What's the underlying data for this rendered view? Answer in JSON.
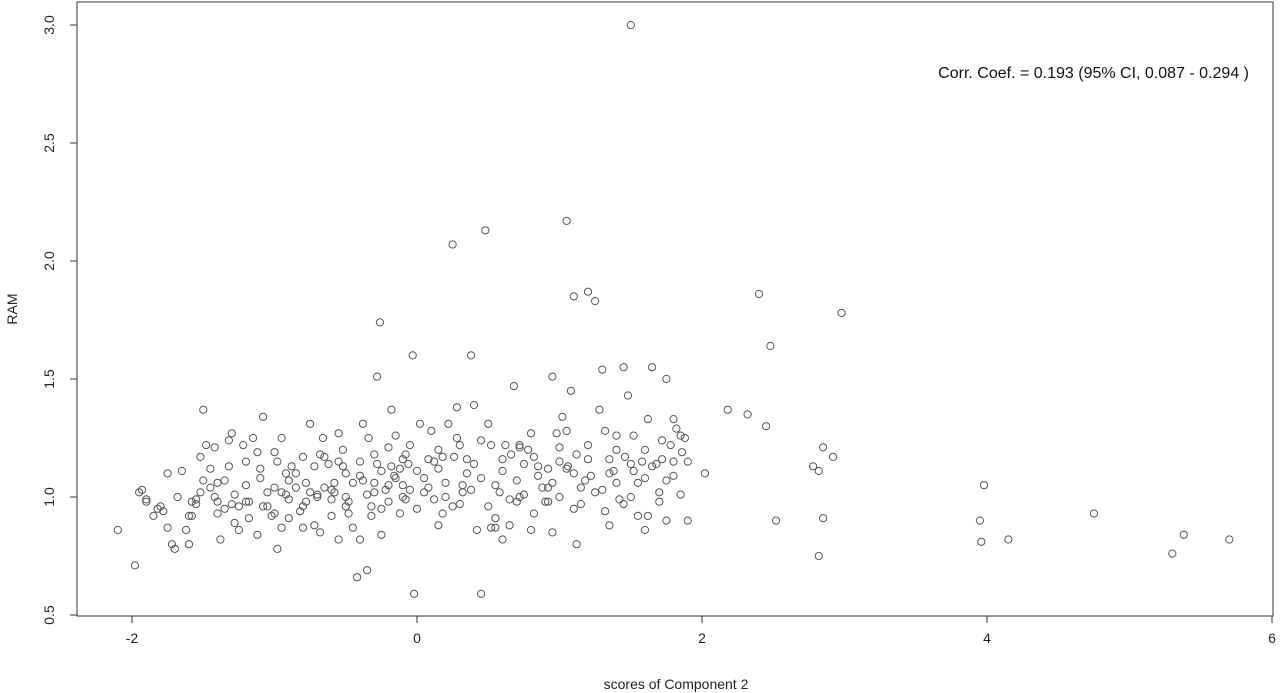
{
  "chart_data": {
    "type": "scatter",
    "title": "",
    "xlabel": "scores of Component 2",
    "ylabel": "RAM",
    "xlim": [
      -2.4,
      6
    ],
    "ylim": [
      0.5,
      3.05
    ],
    "xticks": [
      -2,
      0,
      2,
      4,
      6
    ],
    "xtick_labels": [
      "-2",
      "0",
      "2",
      "4",
      "6"
    ],
    "yticks": [
      0.5,
      1.0,
      1.5,
      2.0,
      2.5,
      3.0
    ],
    "ytick_labels": [
      "0.5",
      "1.0",
      "1.5",
      "2.0",
      "2.5",
      "3.0"
    ],
    "annotation": "Corr. Coef. = 0.193  (95% CI,  0.087 - 0.294 )",
    "grid": false,
    "marker": "open-circle",
    "points": [
      [
        -2.1,
        0.86
      ],
      [
        -1.98,
        0.71
      ],
      [
        -1.95,
        1.02
      ],
      [
        -1.93,
        1.03
      ],
      [
        -1.9,
        0.98
      ],
      [
        -1.85,
        0.92
      ],
      [
        -1.82,
        0.95
      ],
      [
        -1.8,
        0.96
      ],
      [
        -1.75,
        0.87
      ],
      [
        -1.72,
        0.8
      ],
      [
        -1.7,
        0.78
      ],
      [
        -1.68,
        1.0
      ],
      [
        -1.62,
        0.86
      ],
      [
        -1.6,
        0.8
      ],
      [
        -1.58,
        0.92
      ],
      [
        -1.58,
        0.98
      ],
      [
        -1.55,
        0.97
      ],
      [
        -1.52,
        1.17
      ],
      [
        -1.5,
        1.37
      ],
      [
        -1.48,
        1.22
      ],
      [
        -1.45,
        1.04
      ],
      [
        -1.42,
        1.0
      ],
      [
        -1.4,
        0.93
      ],
      [
        -1.38,
        0.82
      ],
      [
        -1.35,
        0.95
      ],
      [
        -1.32,
        1.24
      ],
      [
        -1.3,
        1.27
      ],
      [
        -1.28,
        0.89
      ],
      [
        -1.25,
        0.96
      ],
      [
        -1.22,
        1.22
      ],
      [
        -1.2,
        0.98
      ],
      [
        -1.18,
        0.98
      ],
      [
        -1.15,
        1.25
      ],
      [
        -1.12,
        0.84
      ],
      [
        -1.1,
        1.12
      ],
      [
        -1.08,
        1.34
      ],
      [
        -1.05,
        1.02
      ],
      [
        -1.02,
        0.92
      ],
      [
        -1.0,
        1.04
      ],
      [
        -0.98,
        0.78
      ],
      [
        -0.95,
        1.25
      ],
      [
        -0.92,
        1.1
      ],
      [
        -0.9,
        0.99
      ],
      [
        -0.88,
        1.13
      ],
      [
        -0.85,
        1.04
      ],
      [
        -0.82,
        0.94
      ],
      [
        -0.8,
        0.96
      ],
      [
        -0.78,
        1.06
      ],
      [
        -0.75,
        1.31
      ],
      [
        -0.72,
        0.88
      ],
      [
        -0.7,
        1.01
      ],
      [
        -0.68,
        0.85
      ],
      [
        -0.65,
        1.17
      ],
      [
        -0.62,
        1.14
      ],
      [
        -0.6,
        0.92
      ],
      [
        -0.58,
        1.02
      ],
      [
        -0.55,
        1.27
      ],
      [
        -0.52,
        1.2
      ],
      [
        -0.5,
        1.1
      ],
      [
        -0.48,
        0.98
      ],
      [
        -0.45,
        0.87
      ],
      [
        -0.42,
        0.66
      ],
      [
        -0.4,
        0.82
      ],
      [
        -0.38,
        1.31
      ],
      [
        -0.35,
        0.69
      ],
      [
        -0.32,
        0.92
      ],
      [
        -0.3,
        1.06
      ],
      [
        -0.28,
        1.51
      ],
      [
        -0.26,
        1.74
      ],
      [
        -0.25,
        0.95
      ],
      [
        -0.22,
        1.03
      ],
      [
        -0.2,
        1.21
      ],
      [
        -0.18,
        1.37
      ],
      [
        -0.16,
        1.09
      ],
      [
        -0.15,
        1.26
      ],
      [
        -0.12,
        0.93
      ],
      [
        -0.1,
        1.05
      ],
      [
        -0.08,
        0.99
      ],
      [
        -0.06,
        1.14
      ],
      [
        -0.05,
        1.22
      ],
      [
        -0.03,
        1.6
      ],
      [
        -0.02,
        0.59
      ],
      [
        0.0,
        1.11
      ],
      [
        0.02,
        1.31
      ],
      [
        0.05,
        1.02
      ],
      [
        0.08,
        1.16
      ],
      [
        0.1,
        1.28
      ],
      [
        0.12,
        0.99
      ],
      [
        0.15,
        1.2
      ],
      [
        0.18,
        1.17
      ],
      [
        0.2,
        1.0
      ],
      [
        0.22,
        1.31
      ],
      [
        0.25,
        2.07
      ],
      [
        0.28,
        1.38
      ],
      [
        0.3,
        0.97
      ],
      [
        0.32,
        1.05
      ],
      [
        0.35,
        1.16
      ],
      [
        0.38,
        1.6
      ],
      [
        0.4,
        1.39
      ],
      [
        0.42,
        0.86
      ],
      [
        0.45,
        0.59
      ],
      [
        0.48,
        2.13
      ],
      [
        0.5,
        1.31
      ],
      [
        0.52,
        0.87
      ],
      [
        0.55,
        0.91
      ],
      [
        0.58,
        1.02
      ],
      [
        0.6,
        0.82
      ],
      [
        0.62,
        1.22
      ],
      [
        0.65,
        0.88
      ],
      [
        0.68,
        1.47
      ],
      [
        0.7,
        1.07
      ],
      [
        0.72,
        1.22
      ],
      [
        0.75,
        1.14
      ],
      [
        0.78,
        1.2
      ],
      [
        0.8,
        0.86
      ],
      [
        0.82,
        1.17
      ],
      [
        0.85,
        1.09
      ],
      [
        0.88,
        1.04
      ],
      [
        0.9,
        0.98
      ],
      [
        0.92,
        0.98
      ],
      [
        0.95,
        1.51
      ],
      [
        0.98,
        1.27
      ],
      [
        1.0,
        1.15
      ],
      [
        1.02,
        1.34
      ],
      [
        1.05,
        2.17
      ],
      [
        1.08,
        1.45
      ],
      [
        1.1,
        1.85
      ],
      [
        1.12,
        0.8
      ],
      [
        1.15,
        0.97
      ],
      [
        1.18,
        1.07
      ],
      [
        1.2,
        1.87
      ],
      [
        1.22,
        1.09
      ],
      [
        1.25,
        1.83
      ],
      [
        1.28,
        1.37
      ],
      [
        1.3,
        1.54
      ],
      [
        1.32,
        0.94
      ],
      [
        1.35,
        1.16
      ],
      [
        1.38,
        1.11
      ],
      [
        1.4,
        1.26
      ],
      [
        1.42,
        0.99
      ],
      [
        1.45,
        1.55
      ],
      [
        1.48,
        1.43
      ],
      [
        1.5,
        3.0
      ],
      [
        1.52,
        1.26
      ],
      [
        1.55,
        0.92
      ],
      [
        1.58,
        1.15
      ],
      [
        1.6,
        0.86
      ],
      [
        1.62,
        0.92
      ],
      [
        1.65,
        1.55
      ],
      [
        1.68,
        1.14
      ],
      [
        1.7,
        1.02
      ],
      [
        1.72,
        1.16
      ],
      [
        1.75,
        1.5
      ],
      [
        1.78,
        1.22
      ],
      [
        1.8,
        1.33
      ],
      [
        1.82,
        1.29
      ],
      [
        1.85,
        1.26
      ],
      [
        1.88,
        1.25
      ],
      [
        1.9,
        0.9
      ],
      [
        2.02,
        1.1
      ],
      [
        2.18,
        1.37
      ],
      [
        2.32,
        1.35
      ],
      [
        2.4,
        1.86
      ],
      [
        2.45,
        1.3
      ],
      [
        2.48,
        1.64
      ],
      [
        2.52,
        0.9
      ],
      [
        2.78,
        1.13
      ],
      [
        2.82,
        1.11
      ],
      [
        2.82,
        0.75
      ],
      [
        2.85,
        1.21
      ],
      [
        2.85,
        0.91
      ],
      [
        2.92,
        1.17
      ],
      [
        2.98,
        1.78
      ],
      [
        3.95,
        0.9
      ],
      [
        3.96,
        0.81
      ],
      [
        3.98,
        1.05
      ],
      [
        4.15,
        0.82
      ],
      [
        4.75,
        0.93
      ],
      [
        5.3,
        0.76
      ],
      [
        5.38,
        0.84
      ],
      [
        5.7,
        0.82
      ],
      [
        -1.6,
        0.92
      ],
      [
        -1.5,
        1.07
      ],
      [
        -1.45,
        1.12
      ],
      [
        -1.4,
        0.98
      ],
      [
        -1.35,
        1.07
      ],
      [
        -1.3,
        0.97
      ],
      [
        -1.2,
        1.05
      ],
      [
        -1.1,
        1.08
      ],
      [
        -1.05,
        0.96
      ],
      [
        -0.95,
        1.02
      ],
      [
        -0.85,
        1.1
      ],
      [
        -0.8,
        0.87
      ],
      [
        -0.75,
        1.02
      ],
      [
        -0.7,
        1.0
      ],
      [
        -0.65,
        1.04
      ],
      [
        -0.6,
        1.03
      ],
      [
        -0.55,
        1.15
      ],
      [
        -0.5,
        0.96
      ],
      [
        -0.45,
        1.06
      ],
      [
        -0.4,
        1.09
      ],
      [
        -0.35,
        1.01
      ],
      [
        -0.3,
        1.02
      ],
      [
        -0.25,
        1.11
      ],
      [
        -0.2,
        1.05
      ],
      [
        -0.15,
        1.08
      ],
      [
        -0.1,
        1.0
      ],
      [
        -0.05,
        1.03
      ],
      [
        0.05,
        1.08
      ],
      [
        0.15,
        1.12
      ],
      [
        0.25,
        0.96
      ],
      [
        0.35,
        1.1
      ],
      [
        0.45,
        1.08
      ],
      [
        0.55,
        1.05
      ],
      [
        0.65,
        0.99
      ],
      [
        0.75,
        1.01
      ],
      [
        0.85,
        1.13
      ],
      [
        0.95,
        1.06
      ],
      [
        1.05,
        1.12
      ],
      [
        1.15,
        1.04
      ],
      [
        1.25,
        1.02
      ],
      [
        1.35,
        1.1
      ],
      [
        1.45,
        0.97
      ],
      [
        1.55,
        1.06
      ],
      [
        1.65,
        1.13
      ],
      [
        1.75,
        1.07
      ],
      [
        1.85,
        1.01
      ],
      [
        -1.9,
        0.99
      ],
      [
        -1.78,
        0.94
      ],
      [
        -1.65,
        1.11
      ],
      [
        -1.55,
        0.99
      ],
      [
        -1.42,
        1.21
      ],
      [
        -1.28,
        1.01
      ],
      [
        -1.18,
        0.91
      ],
      [
        -1.08,
        0.96
      ],
      [
        -0.98,
        1.15
      ],
      [
        -0.9,
        0.91
      ],
      [
        -0.78,
        0.98
      ],
      [
        -0.68,
        1.18
      ],
      [
        -0.58,
        1.06
      ],
      [
        -0.48,
        0.93
      ],
      [
        -0.38,
        1.07
      ],
      [
        -0.28,
        1.14
      ],
      [
        -0.18,
        1.13
      ],
      [
        -0.08,
        1.18
      ],
      [
        0.08,
        1.04
      ],
      [
        0.18,
        0.93
      ],
      [
        0.28,
        1.25
      ],
      [
        0.38,
        1.03
      ],
      [
        0.5,
        0.96
      ],
      [
        0.6,
        1.16
      ],
      [
        0.72,
        1.0
      ],
      [
        0.82,
        0.93
      ],
      [
        0.92,
        1.12
      ],
      [
        1.0,
        1.21
      ],
      [
        1.1,
        0.95
      ],
      [
        1.2,
        1.16
      ],
      [
        1.3,
        1.03
      ],
      [
        1.4,
        1.2
      ],
      [
        1.5,
        1.0
      ],
      [
        1.6,
        1.2
      ],
      [
        1.7,
        0.98
      ],
      [
        1.8,
        1.09
      ],
      [
        1.9,
        1.15
      ],
      [
        -1.75,
        1.1
      ],
      [
        -1.52,
        1.02
      ],
      [
        -1.32,
        1.13
      ],
      [
        -1.12,
        1.19
      ],
      [
        -0.92,
        1.01
      ],
      [
        -0.72,
        1.13
      ],
      [
        -0.52,
        1.13
      ],
      [
        -0.32,
        0.96
      ],
      [
        -0.12,
        1.12
      ],
      [
        0.12,
        1.15
      ],
      [
        0.32,
        1.02
      ],
      [
        0.52,
        1.22
      ],
      [
        0.72,
        1.21
      ],
      [
        0.92,
        1.04
      ],
      [
        1.12,
        1.18
      ],
      [
        1.32,
        1.28
      ],
      [
        1.52,
        1.11
      ],
      [
        1.72,
        1.24
      ],
      [
        -1.4,
        1.06
      ],
      [
        -1.0,
        0.93
      ],
      [
        -0.6,
        0.99
      ],
      [
        -0.2,
        0.98
      ],
      [
        0.2,
        1.06
      ],
      [
        0.6,
        1.11
      ],
      [
        1.0,
        1.0
      ],
      [
        1.4,
        1.06
      ],
      [
        1.8,
        1.15
      ],
      [
        -0.9,
        1.07
      ],
      [
        -0.5,
        1.0
      ],
      [
        -0.1,
        1.16
      ],
      [
        0.3,
        1.22
      ],
      [
        0.7,
        0.98
      ],
      [
        1.1,
        1.1
      ],
      [
        1.5,
        1.14
      ],
      [
        -1.2,
        1.15
      ],
      [
        -0.8,
        1.17
      ],
      [
        -0.4,
        1.15
      ],
      [
        0.0,
        0.95
      ],
      [
        0.4,
        1.14
      ],
      [
        0.8,
        1.27
      ],
      [
        1.2,
        1.22
      ],
      [
        1.6,
        1.08
      ],
      [
        -0.66,
        1.25
      ],
      [
        -0.34,
        1.25
      ],
      [
        0.26,
        1.17
      ],
      [
        0.66,
        1.18
      ],
      [
        1.06,
        1.13
      ],
      [
        1.46,
        1.17
      ],
      [
        1.86,
        1.19
      ],
      [
        -1.25,
        0.86
      ],
      [
        -0.95,
        0.87
      ],
      [
        -0.55,
        0.82
      ],
      [
        -0.25,
        0.84
      ],
      [
        0.15,
        0.88
      ],
      [
        0.55,
        0.87
      ],
      [
        0.95,
        0.85
      ],
      [
        1.35,
        0.88
      ],
      [
        1.75,
        0.9
      ],
      [
        -1.0,
        1.19
      ],
      [
        -0.3,
        1.18
      ],
      [
        0.45,
        1.24
      ],
      [
        1.05,
        1.28
      ],
      [
        1.62,
        1.33
      ]
    ]
  }
}
